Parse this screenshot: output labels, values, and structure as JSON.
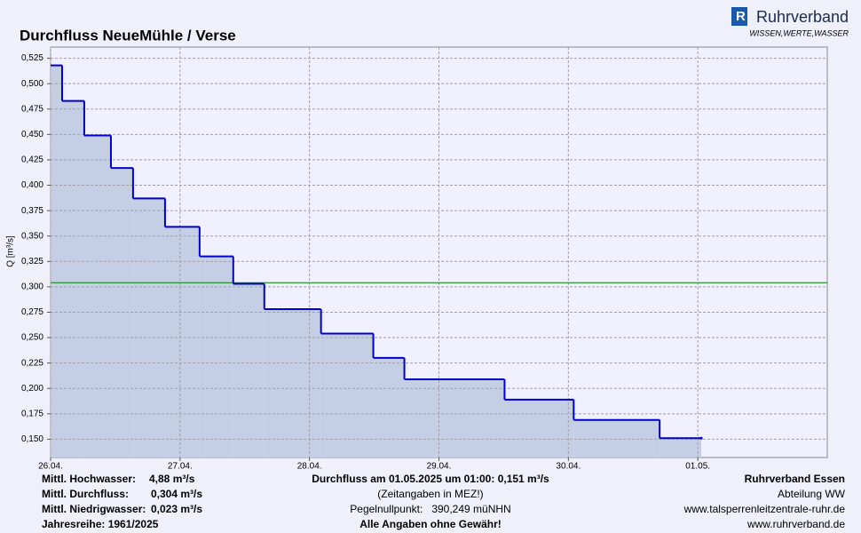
{
  "chart_data": {
    "type": "step-area",
    "title": "Durchfluss NeueMühle / Verse",
    "y_label": "Q [m³/s]",
    "logo": {
      "name": "Ruhrverband",
      "slogan": "WISSEN,WERTE,WASSER"
    },
    "x": [
      0,
      0.089,
      0.26,
      0.466,
      0.637,
      0.884,
      1.151,
      1.411,
      1.651,
      2.089,
      2.493,
      2.733,
      3.507,
      4.041,
      4.705,
      5.027
    ],
    "values": [
      0.518,
      0.483,
      0.449,
      0.417,
      0.387,
      0.359,
      0.33,
      0.303,
      0.278,
      0.254,
      0.23,
      0.209,
      0.189,
      0.169,
      0.151,
      0.151
    ],
    "line_color": "#0000cc",
    "fill_color": "#c4cfe6",
    "xlim": [
      0,
      6
    ],
    "xticks": [
      {
        "value": 0,
        "label": "26.04."
      },
      {
        "value": 1,
        "label": "27.04."
      },
      {
        "value": 2,
        "label": "28.04."
      },
      {
        "value": 3,
        "label": "29.04."
      },
      {
        "value": 4,
        "label": "30.04."
      },
      {
        "value": 5,
        "label": "01.05."
      }
    ],
    "ylim": [
      0.132,
      0.536
    ],
    "yticks": [
      {
        "value": 0.15,
        "label": "0,150"
      },
      {
        "value": 0.175,
        "label": "0,175"
      },
      {
        "value": 0.2,
        "label": "0,200"
      },
      {
        "value": 0.225,
        "label": "0,225"
      },
      {
        "value": 0.25,
        "label": "0,250"
      },
      {
        "value": 0.275,
        "label": "0,275"
      },
      {
        "value": 0.3,
        "label": "0,300"
      },
      {
        "value": 0.325,
        "label": "0,325"
      },
      {
        "value": 0.35,
        "label": "0,350"
      },
      {
        "value": 0.375,
        "label": "0,375"
      },
      {
        "value": 0.4,
        "label": "0,400"
      },
      {
        "value": 0.425,
        "label": "0,425"
      },
      {
        "value": 0.45,
        "label": "0,450"
      },
      {
        "value": 0.475,
        "label": "0,475"
      },
      {
        "value": 0.5,
        "label": "0,500"
      },
      {
        "value": 0.525,
        "label": "0,525"
      }
    ],
    "grid": true,
    "mean_line": {
      "value": 0.304,
      "color": "#008000"
    },
    "stats": [
      {
        "label": "Mittl. Hochwasser:",
        "value_label": "4,88 m³/s",
        "color": "#e00000"
      },
      {
        "label": "Mittl. Durchfluss:",
        "value_label": "0,304 m³/s",
        "color": "#008000"
      },
      {
        "label": "Mittl. Niedrigwasser:",
        "value_label": "0,023 m³/s",
        "color": "#b05050"
      },
      {
        "label": "Jahresreihe: 1961/2025",
        "color": "#000000"
      }
    ],
    "center_notes": [
      {
        "text": "Durchfluss am 01.05.2025 um 01:00: 0,151 m³/s",
        "color": "#0000aa",
        "bold": true
      },
      {
        "text": "(Zeitangaben in MEZ!)",
        "color": "#0000aa",
        "bold": false
      },
      {
        "text": "Pegelnullpunkt:   390,249 müNHN",
        "color": "#000000",
        "bold": false
      },
      {
        "text": "Alle Angaben ohne Gewähr!",
        "color": "#e00000",
        "bold": true
      }
    ],
    "right_notes": [
      "Ruhrverband Essen",
      "Abteilung WW",
      "www.talsperrenleitzentrale-ruhr.de",
      "www.ruhrverband.de"
    ]
  }
}
